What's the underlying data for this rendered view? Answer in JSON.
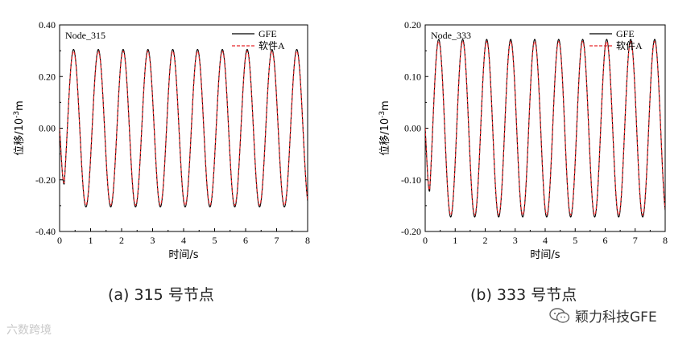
{
  "chart_data": [
    {
      "type": "line",
      "panel_label": "(a) 315 号节点",
      "annotation": "Node_315",
      "xlabel": "时间/s",
      "ylabel": "位移/10",
      "ylabel_exp": "-3",
      "ylabel_unit": "m",
      "xlim": [
        0,
        8
      ],
      "ylim": [
        -0.4,
        0.4
      ],
      "xticks": [
        0,
        1,
        2,
        3,
        4,
        5,
        6,
        7,
        8
      ],
      "yticks": [
        -0.4,
        -0.2,
        0.0,
        0.2,
        0.4
      ],
      "ytick_labels": [
        "-0.40",
        "-0.20",
        "0.00",
        "0.20",
        "0.40"
      ],
      "legend_position": "top-right",
      "series": [
        {
          "name": "GFE",
          "color": "#000000",
          "style": "solid",
          "amplitude": 0.305,
          "period_s": 0.8,
          "t0": 0.25
        },
        {
          "name": "软件A",
          "color": "#e8282b",
          "style": "dashed",
          "amplitude": 0.298,
          "period_s": 0.8,
          "t0": 0.25
        }
      ]
    },
    {
      "type": "line",
      "panel_label": "(b) 333 号节点",
      "annotation": "Node_333",
      "xlabel": "时间/s",
      "ylabel": "位移/10",
      "ylabel_exp": "-3",
      "ylabel_unit": "m",
      "xlim": [
        0,
        8
      ],
      "ylim": [
        -0.2,
        0.2
      ],
      "xticks": [
        0,
        1,
        2,
        3,
        4,
        5,
        6,
        7,
        8
      ],
      "yticks": [
        -0.2,
        -0.1,
        0.0,
        0.1,
        0.2
      ],
      "ytick_labels": [
        "-0.20",
        "-0.10",
        "0.00",
        "0.10",
        "0.20"
      ],
      "legend_position": "top-right",
      "series": [
        {
          "name": "GFE",
          "color": "#000000",
          "style": "solid",
          "amplitude": 0.172,
          "period_s": 0.8,
          "t0": 0.25
        },
        {
          "name": "软件A",
          "color": "#e8282b",
          "style": "dashed",
          "amplitude": 0.168,
          "period_s": 0.8,
          "t0": 0.25
        }
      ]
    }
  ],
  "watermarks": {
    "left_text": "六数跨境",
    "right_text": "颖力科技GFE",
    "right_icon": "wechat-icon"
  }
}
